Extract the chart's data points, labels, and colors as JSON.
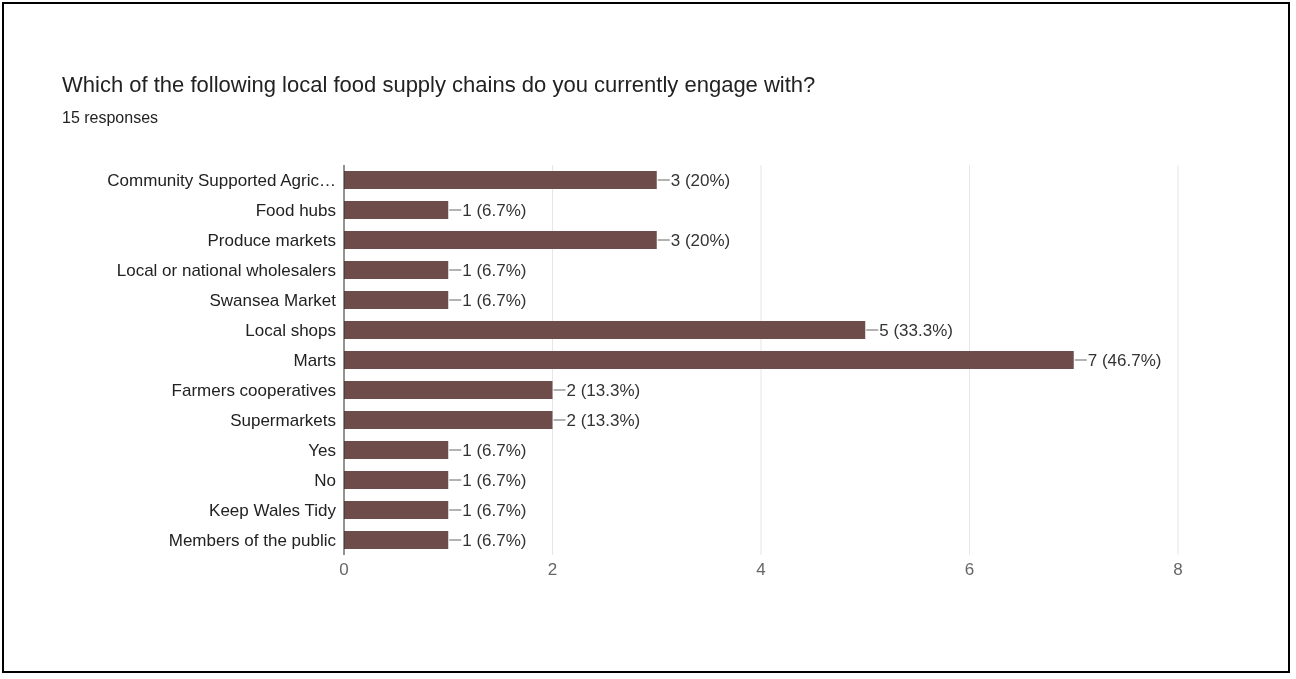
{
  "chart_data": {
    "type": "bar",
    "orientation": "horizontal",
    "title": "Which of the following local food supply chains do you currently engage with?",
    "subtitle": "15 responses",
    "categories": [
      "Community Supported Agric…",
      "Food hubs",
      "Produce markets",
      "Local or national wholesalers",
      "Swansea Market",
      "Local shops",
      "Marts",
      "Farmers cooperatives",
      "Supermarkets",
      "Yes",
      "No",
      "Keep Wales Tidy",
      "Members of the public"
    ],
    "values": [
      3,
      1,
      3,
      1,
      1,
      5,
      7,
      2,
      2,
      1,
      1,
      1,
      1
    ],
    "value_labels": [
      "3 (20%)",
      "1 (6.7%)",
      "3 (20%)",
      "1 (6.7%)",
      "1 (6.7%)",
      "5 (33.3%)",
      "7 (46.7%)",
      "2 (13.3%)",
      "2 (13.3%)",
      "1 (6.7%)",
      "1 (6.7%)",
      "1 (6.7%)",
      "1 (6.7%)"
    ],
    "color": "#6d4c4a",
    "xlim": [
      0,
      8
    ],
    "xticks": [
      0,
      2,
      4,
      6,
      8
    ],
    "grid": "x"
  }
}
